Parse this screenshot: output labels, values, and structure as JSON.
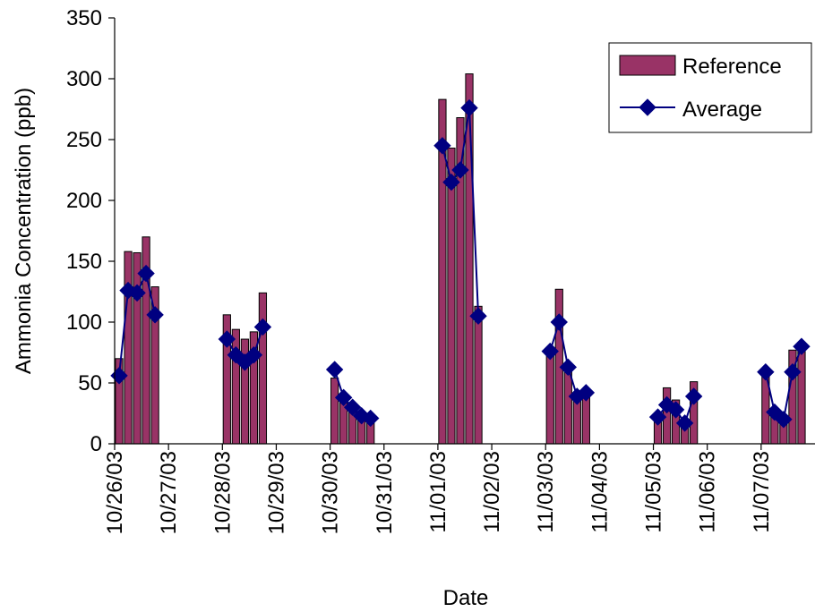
{
  "chart_data": {
    "type": "bar",
    "xlabel": "Date",
    "ylabel": "Ammonia Concentration (ppb)",
    "ylim": [
      0,
      350
    ],
    "yticks": [
      0,
      50,
      100,
      150,
      200,
      250,
      300,
      350
    ],
    "xlim": [
      "10/26/03 00:00",
      "11/08/03 00:00"
    ],
    "xtick_labels": [
      "10/26/03",
      "10/27/03",
      "10/28/03",
      "10/29/03",
      "10/30/03",
      "10/31/03",
      "11/01/03",
      "11/02/03",
      "11/03/03",
      "11/04/03",
      "11/05/03",
      "11/06/03",
      "11/07/03"
    ],
    "grid": false,
    "legend_position": "top-right",
    "colors": {
      "reference": "#993366",
      "average": "#000080"
    },
    "x": [
      "10/26/03 02:00",
      "10/26/03 06:00",
      "10/26/03 10:00",
      "10/26/03 14:00",
      "10/26/03 18:00",
      "10/26/03 22:00",
      "10/28/03 02:00",
      "10/28/03 06:00",
      "10/28/03 10:00",
      "10/28/03 14:00",
      "10/28/03 18:00",
      "10/28/03 22:00",
      "10/30/03 02:00",
      "10/30/03 06:00",
      "10/30/03 10:00",
      "10/30/03 14:00",
      "10/30/03 18:00",
      "10/30/03 22:00",
      "11/01/03 02:00",
      "11/01/03 06:00",
      "11/01/03 10:00",
      "11/01/03 14:00",
      "11/01/03 18:00",
      "11/01/03 22:00",
      "11/03/03 02:00",
      "11/03/03 06:00",
      "11/03/03 10:00",
      "11/03/03 14:00",
      "11/03/03 18:00",
      "11/03/03 22:00",
      "11/05/03 02:00",
      "11/05/03 06:00",
      "11/05/03 10:00",
      "11/05/03 14:00",
      "11/05/03 18:00",
      "11/05/03 22:00",
      "11/07/03 02:00",
      "11/07/03 06:00",
      "11/07/03 10:00",
      "11/07/03 14:00",
      "11/07/03 18:00",
      "11/07/03 22:00"
    ],
    "series": [
      {
        "name": "Reference",
        "type": "bar",
        "values": [
          70,
          158,
          157,
          170,
          129,
          null,
          106,
          94,
          86,
          92,
          124,
          null,
          54,
          36,
          27,
          22,
          20,
          null,
          283,
          243,
          268,
          304,
          113,
          null,
          73,
          127,
          62,
          37,
          40,
          null,
          22,
          46,
          36,
          17,
          51,
          null,
          57,
          26,
          22,
          77,
          76,
          null
        ]
      },
      {
        "name": "Average",
        "type": "line",
        "values": [
          56,
          126,
          124,
          140,
          106,
          null,
          86,
          73,
          67,
          73,
          96,
          null,
          61,
          38,
          30,
          23,
          21,
          null,
          245,
          215,
          225,
          276,
          105,
          null,
          76,
          100,
          63,
          39,
          42,
          null,
          22,
          32,
          28,
          17,
          39,
          null,
          59,
          26,
          20,
          59,
          80,
          null
        ]
      }
    ]
  }
}
